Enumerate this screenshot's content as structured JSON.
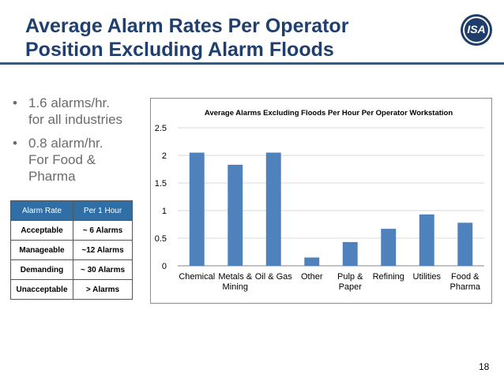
{
  "slide": {
    "title_line1": "Average Alarm Rates Per Operator",
    "title_line2": "Position Excluding Alarm Floods",
    "logo_text": "ISA",
    "page_number": "18"
  },
  "bullets": [
    [
      "1.6 alarms/hr.",
      "for all industries"
    ],
    [
      "0.8 alarm/hr.",
      "For Food &",
      "Pharma"
    ]
  ],
  "rate_table": {
    "headers": [
      "Alarm Rate",
      "Per 1 Hour"
    ],
    "rows": [
      [
        "Acceptable",
        "~ 6 Alarms"
      ],
      [
        "Manageable",
        "~12 Alarms"
      ],
      [
        "Demanding",
        "~ 30 Alarms"
      ],
      [
        "Unacceptable",
        "> Alarms"
      ]
    ]
  },
  "colors": {
    "title": "#1f3f6e",
    "bar": "#4f81bd",
    "table_header": "#2f6fa6"
  },
  "chart_data": {
    "type": "bar",
    "title": "Average Alarms Excluding Floods Per Hour Per Operator Workstation",
    "categories": [
      [
        "Chemical"
      ],
      [
        "Metals &",
        "Mining"
      ],
      [
        "Oil & Gas"
      ],
      [
        "Other"
      ],
      [
        "Pulp &",
        "Paper"
      ],
      [
        "Refining"
      ],
      [
        "Utilities"
      ],
      [
        "Food &",
        "Pharma"
      ]
    ],
    "values": [
      2.05,
      1.83,
      2.05,
      0.15,
      0.43,
      0.67,
      0.93,
      0.78
    ],
    "ylim": [
      0,
      2.5
    ],
    "yticks": [
      "0",
      "0.5",
      "1",
      "1.5",
      "2",
      "2.5"
    ],
    "grid": true,
    "legend": "none"
  }
}
